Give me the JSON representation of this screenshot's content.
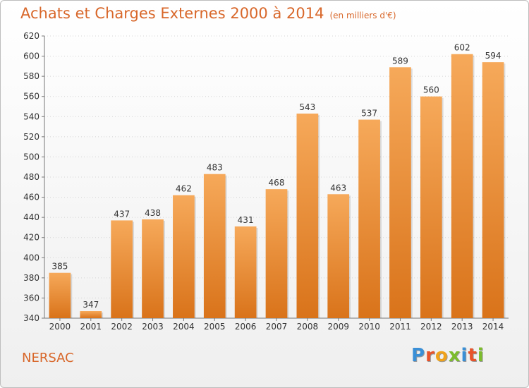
{
  "header": {
    "title": "Achats et Charges Externes 2000 à 2014",
    "unit": "(en milliers d'€)"
  },
  "footer": {
    "city": "NERSAC",
    "logo_letters": [
      "P",
      "r",
      "o",
      "x",
      "i",
      "t",
      "i"
    ],
    "logo_colors": [
      "#3a8fd6",
      "#e8522a",
      "#f0a21a",
      "#7cbc2c",
      "#3a8fd6",
      "#e8522a",
      "#7cbc2c"
    ]
  },
  "chart_data": {
    "type": "bar",
    "categories": [
      "2000",
      "2001",
      "2002",
      "2003",
      "2004",
      "2005",
      "2006",
      "2007",
      "2008",
      "2009",
      "2010",
      "2011",
      "2012",
      "2013",
      "2014"
    ],
    "values": [
      385,
      347,
      437,
      438,
      462,
      483,
      431,
      468,
      543,
      463,
      537,
      589,
      560,
      602,
      594
    ],
    "ylim": [
      340,
      620
    ],
    "yticks": [
      340,
      360,
      380,
      400,
      420,
      440,
      460,
      480,
      500,
      520,
      540,
      560,
      580,
      600,
      620
    ],
    "grid": true,
    "bar_color_light": "#f6a95a",
    "bar_color_dark": "#d9731a"
  }
}
